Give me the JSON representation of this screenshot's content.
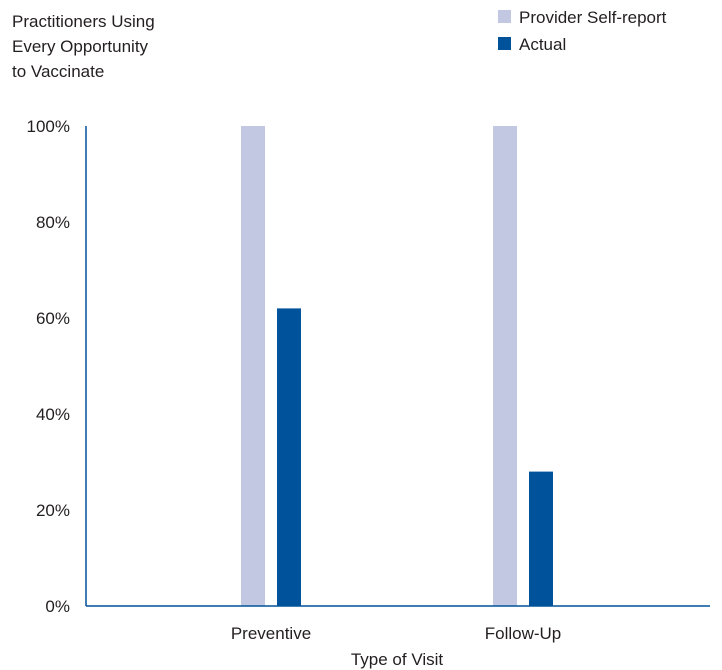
{
  "colors": {
    "self_report": "#c3c8e2",
    "actual": "#00529b",
    "axis": "#00529b",
    "text": "#231f20"
  },
  "chart_data": {
    "type": "bar",
    "ylabel_lines": [
      "Practitioners Using",
      "Every Opportunity",
      "to Vaccinate"
    ],
    "xlabel": "Type of Visit",
    "categories": [
      "Preventive",
      "Follow-Up"
    ],
    "series": [
      {
        "name": "Provider Self-report",
        "values": [
          100,
          100
        ]
      },
      {
        "name": "Actual",
        "values": [
          62,
          28
        ]
      }
    ],
    "ylim": [
      0,
      100
    ],
    "yticks": [
      0,
      20,
      40,
      60,
      80,
      100
    ],
    "ytick_labels": [
      "0%",
      "20%",
      "40%",
      "60%",
      "80%",
      "100%"
    ],
    "grid": false,
    "legend_position": "top-right"
  }
}
